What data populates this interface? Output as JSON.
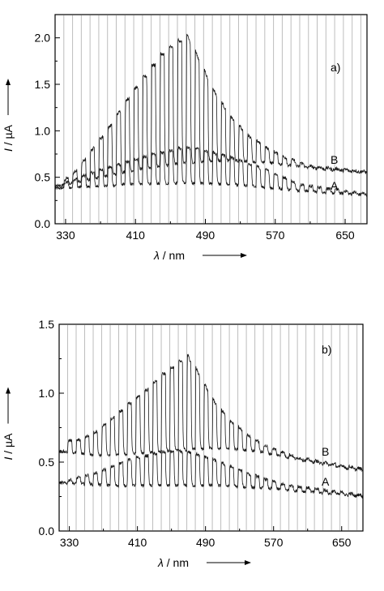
{
  "chart_data": [
    {
      "type": "line",
      "panel_label": "a)",
      "xlabel_symbol": "λ",
      "xlabel_unit": " / nm",
      "ylabel_symbol": "I",
      "ylabel_unit": " / µA",
      "xlim": [
        318,
        675
      ],
      "ylim": [
        0,
        2.25
      ],
      "x_ticks": [
        330,
        410,
        490,
        570,
        650
      ],
      "y_ticks": [
        "0.0",
        "0.5",
        "1.0",
        "1.5",
        "2.0"
      ],
      "pulse_starts": [
        328,
        338,
        348,
        358,
        368,
        378,
        388,
        398,
        408,
        418,
        428,
        438,
        448,
        458,
        468,
        478,
        488,
        498,
        508,
        518,
        528,
        538,
        548,
        558,
        568,
        578,
        588,
        598,
        608,
        618,
        628,
        638,
        648,
        658,
        668
      ],
      "series": [
        {
          "name": "A",
          "baseline": [
            [
              318,
              0.38
            ],
            [
              360,
              0.4
            ],
            [
              420,
              0.43
            ],
            [
              470,
              0.44
            ],
            [
              520,
              0.42
            ],
            [
              570,
              0.38
            ],
            [
              620,
              0.34
            ],
            [
              675,
              0.31
            ]
          ],
          "peak": [
            [
              318,
              0.4
            ],
            [
              360,
              0.55
            ],
            [
              410,
              0.7
            ],
            [
              460,
              0.82
            ],
            [
              480,
              0.82
            ],
            [
              520,
              0.72
            ],
            [
              560,
              0.58
            ],
            [
              600,
              0.42
            ],
            [
              675,
              0.32
            ]
          ]
        },
        {
          "name": "B",
          "baseline": [
            [
              318,
              0.4
            ],
            [
              360,
              0.48
            ],
            [
              410,
              0.58
            ],
            [
              460,
              0.65
            ],
            [
              510,
              0.68
            ],
            [
              560,
              0.66
            ],
            [
              610,
              0.6
            ],
            [
              675,
              0.55
            ]
          ],
          "peak": [
            [
              318,
              0.4
            ],
            [
              340,
              0.55
            ],
            [
              360,
              0.8
            ],
            [
              380,
              1.05
            ],
            [
              400,
              1.35
            ],
            [
              420,
              1.6
            ],
            [
              440,
              1.85
            ],
            [
              460,
              2.0
            ],
            [
              470,
              2.05
            ],
            [
              480,
              1.85
            ],
            [
              500,
              1.45
            ],
            [
              520,
              1.15
            ],
            [
              540,
              0.95
            ],
            [
              560,
              0.82
            ],
            [
              580,
              0.72
            ],
            [
              610,
              0.62
            ],
            [
              675,
              0.56
            ]
          ]
        }
      ]
    },
    {
      "type": "line",
      "panel_label": "b)",
      "xlabel_symbol": "λ",
      "xlabel_unit": " / nm",
      "ylabel_symbol": "I",
      "ylabel_unit": " / µA",
      "xlim": [
        318,
        675
      ],
      "ylim": [
        0,
        1.5
      ],
      "x_ticks": [
        330,
        410,
        490,
        570,
        650
      ],
      "y_ticks": [
        "0.0",
        "0.5",
        "1.0",
        "1.5"
      ],
      "pulse_starts": [
        328,
        338,
        348,
        358,
        368,
        378,
        388,
        398,
        408,
        418,
        428,
        438,
        448,
        458,
        468,
        478,
        488,
        498,
        508,
        518,
        528,
        538,
        548,
        558,
        568,
        578,
        588,
        598,
        608,
        618,
        628,
        638,
        648,
        658,
        668
      ],
      "series": [
        {
          "name": "A",
          "baseline": [
            [
              318,
              0.35
            ],
            [
              380,
              0.33
            ],
            [
              440,
              0.33
            ],
            [
              500,
              0.33
            ],
            [
              560,
              0.31
            ],
            [
              620,
              0.28
            ],
            [
              675,
              0.25
            ]
          ],
          "peak": [
            [
              318,
              0.35
            ],
            [
              360,
              0.42
            ],
            [
              400,
              0.52
            ],
            [
              440,
              0.58
            ],
            [
              470,
              0.58
            ],
            [
              500,
              0.52
            ],
            [
              540,
              0.42
            ],
            [
              580,
              0.34
            ],
            [
              675,
              0.26
            ]
          ]
        },
        {
          "name": "B",
          "baseline": [
            [
              318,
              0.58
            ],
            [
              360,
              0.55
            ],
            [
              400,
              0.56
            ],
            [
              450,
              0.58
            ],
            [
              500,
              0.6
            ],
            [
              550,
              0.58
            ],
            [
              600,
              0.52
            ],
            [
              650,
              0.46
            ],
            [
              675,
              0.44
            ]
          ],
          "peak": [
            [
              318,
              0.65
            ],
            [
              340,
              0.66
            ],
            [
              360,
              0.72
            ],
            [
              380,
              0.82
            ],
            [
              400,
              0.93
            ],
            [
              420,
              1.03
            ],
            [
              440,
              1.15
            ],
            [
              460,
              1.25
            ],
            [
              470,
              1.28
            ],
            [
              480,
              1.18
            ],
            [
              500,
              0.95
            ],
            [
              520,
              0.8
            ],
            [
              540,
              0.7
            ],
            [
              560,
              0.62
            ],
            [
              600,
              0.53
            ],
            [
              675,
              0.45
            ]
          ]
        }
      ]
    }
  ]
}
